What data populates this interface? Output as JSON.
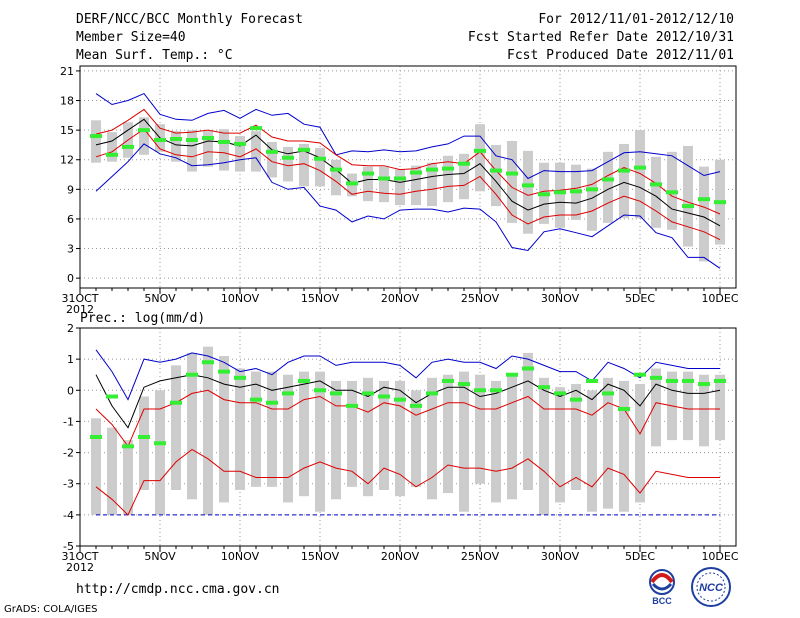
{
  "header": {
    "title": "DERF/NCC/BCC Monthly Forecast",
    "member_size": "Member Size=40",
    "variable": "Mean Surf. Temp.: °C",
    "period": "For 2012/11/01-2012/12/10",
    "refer_date": "Fcst Started Refer Date 2012/10/31",
    "produced_date": "Fcst Produced Date 2012/11/01"
  },
  "footer": {
    "url": "http://cmdp.ncc.cma.gov.cn",
    "credit": "GrADS: COLA/IGES",
    "logo_left": "BCC",
    "logo_right": "NCC"
  },
  "colors": {
    "box": "#cccccc",
    "median": "#33ee33",
    "mean": "#000000",
    "std": "#dd0000",
    "extreme": "#0000cc",
    "grid": "#999999"
  },
  "chart_data": [
    {
      "type": "boxplot-line",
      "title": "Mean Surf. Temp.: °C",
      "xlabel": "",
      "ylabel": "",
      "x_ticks": [
        "31OCT\n2012",
        "5NOV",
        "10NOV",
        "15NOV",
        "20NOV",
        "25NOV",
        "30NOV",
        "5DEC",
        "10DEC"
      ],
      "x_tick_days": [
        0,
        5,
        10,
        15,
        20,
        25,
        30,
        35,
        40
      ],
      "ylim": [
        -1,
        21.5
      ],
      "y_ticks": [
        0,
        3,
        6,
        9,
        12,
        15,
        18,
        21
      ],
      "grid": true,
      "days": [
        1,
        2,
        3,
        4,
        5,
        6,
        7,
        8,
        9,
        10,
        11,
        12,
        13,
        14,
        15,
        16,
        17,
        18,
        19,
        20,
        21,
        22,
        23,
        24,
        25,
        26,
        27,
        28,
        29,
        30,
        31,
        32,
        33,
        34,
        35,
        36,
        37,
        38,
        39,
        40
      ],
      "series": [
        {
          "name": "max",
          "values": [
            18.7,
            17.6,
            18.0,
            18.7,
            16.6,
            16.1,
            16.0,
            16.7,
            17.0,
            16.2,
            17.1,
            16.5,
            16.7,
            15.6,
            15.3,
            12.5,
            12.9,
            12.8,
            13.0,
            12.8,
            12.9,
            13.3,
            13.6,
            14.4,
            14.4,
            12.4,
            12.0,
            10.1,
            10.9,
            10.8,
            10.8,
            10.9,
            11.8,
            12.7,
            12.8,
            12.6,
            12.4,
            11.4,
            10.4,
            10.8
          ]
        },
        {
          "name": "std_upper",
          "values": [
            14.6,
            15.0,
            16.0,
            17.1,
            15.2,
            14.7,
            14.8,
            15.0,
            14.7,
            14.7,
            15.5,
            14.3,
            13.9,
            13.9,
            13.7,
            12.5,
            11.5,
            11.4,
            11.4,
            11.0,
            11.1,
            11.6,
            11.8,
            11.6,
            12.8,
            10.9,
            9.2,
            8.4,
            8.8,
            8.9,
            9.1,
            9.5,
            10.4,
            11.2,
            10.6,
            9.6,
            8.3,
            7.7,
            7.2,
            6.5
          ]
        },
        {
          "name": "mean",
          "values": [
            13.5,
            13.9,
            15.0,
            16.1,
            14.2,
            13.5,
            13.4,
            13.9,
            13.8,
            13.4,
            14.5,
            13.0,
            12.6,
            12.9,
            12.2,
            11.0,
            9.6,
            10.0,
            10.0,
            9.7,
            10.0,
            10.3,
            10.5,
            10.6,
            11.6,
            9.8,
            7.8,
            6.9,
            7.5,
            7.7,
            7.6,
            8.1,
            9.0,
            9.7,
            9.2,
            8.3,
            7.0,
            6.6,
            6.2,
            5.3
          ]
        },
        {
          "name": "std_lower",
          "values": [
            12.3,
            12.8,
            14.0,
            15.1,
            13.1,
            12.5,
            12.3,
            12.8,
            12.7,
            12.3,
            13.1,
            11.8,
            11.4,
            11.6,
            10.9,
            9.8,
            8.5,
            8.8,
            8.6,
            8.5,
            8.8,
            9.0,
            9.3,
            9.4,
            10.3,
            8.5,
            6.4,
            5.5,
            6.2,
            6.4,
            6.4,
            6.8,
            7.6,
            8.3,
            7.8,
            6.8,
            5.7,
            5.2,
            4.7,
            3.9
          ]
        },
        {
          "name": "min",
          "values": [
            8.8,
            10.3,
            11.8,
            13.6,
            12.6,
            12.2,
            11.4,
            11.5,
            11.7,
            12.0,
            12.2,
            9.7,
            9.0,
            9.2,
            7.3,
            6.9,
            5.7,
            6.3,
            6.0,
            6.9,
            7.0,
            7.0,
            6.7,
            7.1,
            7.0,
            5.7,
            3.1,
            2.8,
            4.7,
            5.0,
            4.6,
            4.2,
            5.3,
            6.4,
            6.3,
            4.6,
            4.1,
            2.1,
            2.1,
            1.0
          ]
        },
        {
          "name": "box_top",
          "values": [
            16.0,
            14.8,
            15.8,
            16.3,
            15.6,
            14.9,
            15.0,
            14.9,
            15.1,
            14.4,
            14.9,
            13.8,
            13.3,
            13.6,
            13.2,
            12.0,
            10.6,
            11.3,
            11.3,
            11.0,
            11.4,
            11.7,
            12.4,
            12.6,
            15.6,
            13.5,
            13.9,
            12.9,
            11.7,
            11.7,
            11.5,
            11.1,
            12.8,
            13.6,
            15.0,
            12.3,
            12.8,
            13.4,
            11.3,
            12.0
          ]
        },
        {
          "name": "box_bottom",
          "values": [
            11.7,
            11.8,
            12.2,
            12.5,
            12.8,
            11.8,
            10.8,
            11.3,
            10.9,
            10.8,
            10.8,
            10.2,
            9.8,
            9.3,
            9.3,
            8.4,
            8.3,
            7.8,
            7.7,
            7.4,
            7.4,
            7.3,
            7.7,
            8.0,
            8.8,
            7.3,
            5.6,
            4.5,
            5.5,
            5.1,
            5.9,
            4.8,
            5.6,
            6.1,
            6.1,
            5.1,
            4.9,
            3.2,
            1.7,
            3.4
          ]
        },
        {
          "name": "median",
          "values": [
            14.4,
            12.5,
            13.3,
            15.0,
            14.0,
            14.1,
            14.0,
            14.2,
            13.8,
            13.6,
            15.2,
            12.8,
            12.2,
            13.0,
            12.1,
            11.0,
            9.6,
            10.6,
            10.1,
            10.1,
            10.7,
            11.0,
            11.1,
            11.6,
            12.9,
            10.9,
            10.6,
            9.4,
            8.5,
            8.7,
            8.8,
            9.0,
            10.0,
            10.9,
            11.2,
            9.5,
            8.7,
            7.3,
            8.0,
            7.7
          ]
        }
      ]
    },
    {
      "type": "boxplot-line",
      "title": "Prec.: log(mm/d)",
      "xlabel": "",
      "ylabel": "",
      "x_ticks": [
        "31OCT\n2012",
        "5NOV",
        "10NOV",
        "15NOV",
        "20NOV",
        "25NOV",
        "30NOV",
        "5DEC",
        "10DEC"
      ],
      "x_tick_days": [
        0,
        5,
        10,
        15,
        20,
        25,
        30,
        35,
        40
      ],
      "ylim": [
        -5,
        2
      ],
      "y_ticks": [
        -5,
        -4,
        -3,
        -2,
        -1,
        0,
        1,
        2
      ],
      "grid": true,
      "days": [
        1,
        2,
        3,
        4,
        5,
        6,
        7,
        8,
        9,
        10,
        11,
        12,
        13,
        14,
        15,
        16,
        17,
        18,
        19,
        20,
        21,
        22,
        23,
        24,
        25,
        26,
        27,
        28,
        29,
        30,
        31,
        32,
        33,
        34,
        35,
        36,
        37,
        38,
        39,
        40
      ],
      "series": [
        {
          "name": "max",
          "values": [
            1.3,
            0.6,
            -0.3,
            1.0,
            0.9,
            1.0,
            1.2,
            1.1,
            0.9,
            0.6,
            0.7,
            0.5,
            0.9,
            1.1,
            1.1,
            0.8,
            0.9,
            0.9,
            0.9,
            0.8,
            0.4,
            0.9,
            1.0,
            0.9,
            0.9,
            0.7,
            1.1,
            1.0,
            0.8,
            0.6,
            0.6,
            0.3,
            0.9,
            0.7,
            0.4,
            0.9,
            0.8,
            0.7,
            0.7,
            0.7
          ]
        },
        {
          "name": "mean_upper",
          "values": [
            0.5,
            -0.5,
            -1.2,
            0.1,
            0.3,
            0.4,
            0.5,
            0.4,
            0.2,
            0.1,
            0.2,
            0.0,
            0.1,
            0.2,
            0.3,
            0.0,
            0.0,
            -0.2,
            0.1,
            0.0,
            -0.4,
            -0.1,
            0.1,
            0.1,
            -0.2,
            -0.1,
            0.1,
            0.3,
            0.0,
            -0.2,
            0.0,
            -0.3,
            0.2,
            0.0,
            -0.5,
            0.2,
            0.0,
            -0.1,
            -0.1,
            0.0
          ]
        },
        {
          "name": "std_upper",
          "values": [
            -0.6,
            -1.1,
            -1.8,
            -0.6,
            -0.6,
            -0.4,
            -0.1,
            0.0,
            -0.3,
            -0.4,
            -0.4,
            -0.6,
            -0.6,
            -0.3,
            -0.2,
            -0.5,
            -0.5,
            -0.7,
            -0.4,
            -0.5,
            -0.8,
            -0.6,
            -0.4,
            -0.4,
            -0.6,
            -0.6,
            -0.4,
            -0.2,
            -0.6,
            -0.6,
            -0.6,
            -0.8,
            -0.4,
            -0.6,
            -1.4,
            -0.4,
            -0.5,
            -0.6,
            -0.6,
            -0.6
          ]
        },
        {
          "name": "std_lower",
          "values": [
            -3.1,
            -3.5,
            -4.0,
            -2.9,
            -2.9,
            -2.3,
            -1.9,
            -2.2,
            -2.6,
            -2.6,
            -2.8,
            -2.8,
            -2.8,
            -2.5,
            -2.3,
            -2.5,
            -2.6,
            -3.0,
            -2.5,
            -2.7,
            -3.1,
            -2.8,
            -2.4,
            -2.5,
            -2.5,
            -2.6,
            -2.5,
            -2.2,
            -2.6,
            -3.1,
            -2.8,
            -3.1,
            -2.5,
            -2.7,
            -3.3,
            -2.6,
            -2.7,
            -2.8,
            -2.8,
            -2.8
          ]
        },
        {
          "name": "min",
          "values": [
            -4.0,
            -4.0,
            -4.0,
            -4.0,
            -4.0,
            -4.0,
            -4.0,
            -4.0,
            -4.0,
            -4.0,
            -4.0,
            -4.0,
            -4.0,
            -4.0,
            -4.0,
            -4.0,
            -4.0,
            -4.0,
            -4.0,
            -4.0,
            -4.0,
            -4.0,
            -4.0,
            -4.0,
            -4.0,
            -4.0,
            -4.0,
            -4.0,
            -4.0,
            -4.0,
            -4.0,
            -4.0,
            -4.0,
            -4.0,
            -4.0,
            -4.0,
            -4.0,
            -4.0,
            -4.0,
            -4.0
          ]
        },
        {
          "name": "box_top",
          "values": [
            -0.9,
            -1.2,
            -1.6,
            -0.2,
            0.0,
            0.8,
            1.2,
            1.4,
            1.1,
            0.7,
            0.6,
            0.6,
            0.5,
            0.6,
            0.6,
            0.3,
            0.3,
            0.4,
            0.3,
            0.3,
            0.0,
            0.4,
            0.5,
            0.6,
            0.5,
            0.3,
            0.5,
            1.2,
            0.4,
            0.1,
            0.2,
            0.0,
            0.4,
            0.3,
            0.2,
            0.7,
            0.6,
            0.6,
            0.5,
            0.5
          ]
        },
        {
          "name": "box_bottom",
          "values": [
            -4.0,
            -4.0,
            -4.0,
            -3.2,
            -4.0,
            -3.2,
            -3.5,
            -4.0,
            -3.6,
            -3.2,
            -3.1,
            -3.1,
            -3.6,
            -3.4,
            -3.9,
            -3.5,
            -3.1,
            -3.4,
            -3.2,
            -3.4,
            -3.1,
            -3.5,
            -3.3,
            -3.9,
            -3.0,
            -3.6,
            -3.5,
            -3.2,
            -4.0,
            -3.6,
            -3.2,
            -3.9,
            -3.8,
            -3.9,
            -3.6,
            -1.8,
            -1.6,
            -1.6,
            -1.8,
            -1.6
          ]
        },
        {
          "name": "median",
          "values": [
            -1.5,
            -0.2,
            -1.8,
            -1.5,
            -1.7,
            -0.4,
            0.5,
            0.9,
            0.6,
            0.4,
            -0.3,
            -0.4,
            -0.1,
            0.3,
            0.0,
            -0.1,
            -0.5,
            -0.1,
            -0.2,
            -0.3,
            -0.5,
            -0.1,
            0.3,
            0.2,
            0.0,
            0.0,
            0.5,
            0.7,
            0.1,
            -0.1,
            -0.3,
            0.3,
            -0.1,
            -0.6,
            0.5,
            0.4,
            0.3,
            0.3,
            0.2,
            0.3
          ]
        }
      ]
    }
  ]
}
